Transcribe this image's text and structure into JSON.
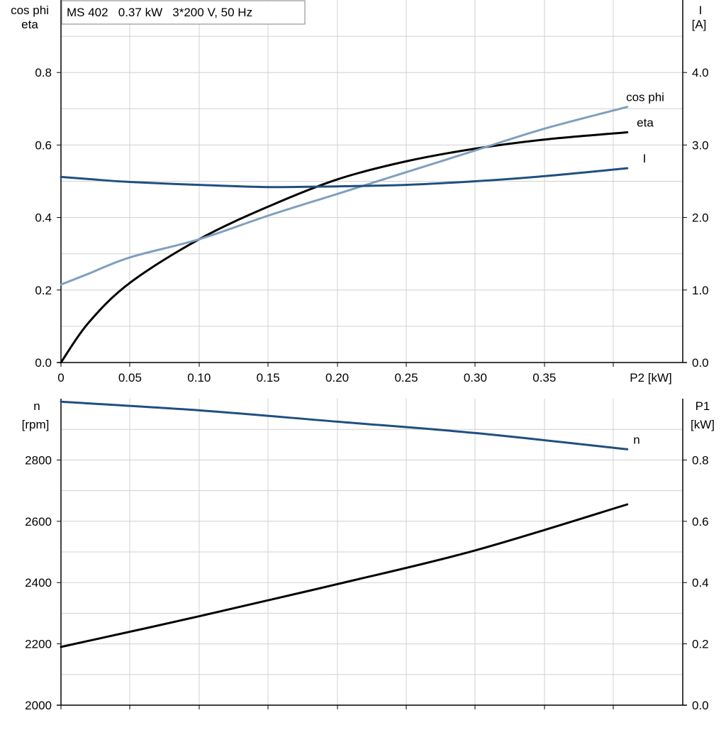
{
  "header": {
    "title": "MS 402   0.37 kW   3*200 V, 50 Hz"
  },
  "colors": {
    "background": "#ffffff",
    "grid": "#d0d0d0",
    "axis": "#000000",
    "eta": "#000000",
    "cos_phi": "#7f9fbf",
    "current": "#1f4f80",
    "speed": "#1f4f80",
    "p1": "#000000"
  },
  "chart_data": [
    {
      "type": "line",
      "x": [
        0,
        0.02,
        0.05,
        0.1,
        0.15,
        0.2,
        0.25,
        0.3,
        0.35,
        0.41
      ],
      "xlabel": "P2 [kW]",
      "xticks": [
        "0",
        "0.05",
        "0.10",
        "0.15",
        "0.20",
        "0.25",
        "0.30",
        "0.35"
      ],
      "xtick_values": [
        0,
        0.05,
        0.1,
        0.15,
        0.2,
        0.25,
        0.3,
        0.35
      ],
      "xlim": [
        0,
        0.4
      ],
      "ylabel_left": [
        "cos phi",
        "eta"
      ],
      "ylabel_right": [
        "I",
        "[A]"
      ],
      "ylim_left": [
        0,
        1.0
      ],
      "ylim_right": [
        0,
        5.0
      ],
      "yticks_left": [
        "0.0",
        "0.2",
        "0.4",
        "0.6",
        "0.8"
      ],
      "ytick_values_left": [
        0,
        0.2,
        0.4,
        0.6,
        0.8
      ],
      "yticks_right": [
        "0.0",
        "1.0",
        "2.0",
        "3.0",
        "4.0"
      ],
      "ytick_values_right": [
        0,
        1,
        2,
        3,
        4
      ],
      "grid": true,
      "series": [
        {
          "name": "eta",
          "axis": "left",
          "color": "#000000",
          "label_color": "#000000",
          "values": [
            0,
            0.11,
            0.22,
            0.34,
            0.43,
            0.505,
            0.555,
            0.59,
            0.615,
            0.635
          ]
        },
        {
          "name": "cos phi",
          "axis": "left",
          "color": "#7f9fbf",
          "label_color": "#7f9fbf",
          "values": [
            0.215,
            0.245,
            0.29,
            0.34,
            0.405,
            0.465,
            0.525,
            0.585,
            0.645,
            0.705
          ]
        },
        {
          "name": "I",
          "axis": "right",
          "color": "#1f4f80",
          "label_color": "#1f4f80",
          "values": [
            2.56,
            2.53,
            2.49,
            2.45,
            2.42,
            2.43,
            2.45,
            2.5,
            2.57,
            2.68
          ]
        }
      ]
    },
    {
      "type": "line",
      "x": [
        0,
        0.1,
        0.2,
        0.3,
        0.41
      ],
      "xlim": [
        0,
        0.4
      ],
      "xtick_values": [
        0,
        0.05,
        0.1,
        0.15,
        0.2,
        0.25,
        0.3,
        0.35
      ],
      "ylabel_left": [
        "n",
        "[rpm]"
      ],
      "ylabel_right": [
        "P1",
        "[kW]"
      ],
      "ylim_left": [
        2000,
        3000
      ],
      "ylim_right": [
        0,
        1.0
      ],
      "yticks_left": [
        "2000",
        "2200",
        "2400",
        "2600",
        "2800"
      ],
      "ytick_values_left": [
        2000,
        2200,
        2400,
        2600,
        2800
      ],
      "yticks_right": [
        "0.0",
        "0.2",
        "0.4",
        "0.6",
        "0.8"
      ],
      "ytick_values_right": [
        0,
        0.2,
        0.4,
        0.6,
        0.8
      ],
      "grid": true,
      "series": [
        {
          "name": "n",
          "axis": "left",
          "color": "#1f4f80",
          "label_color": "#1f4f80",
          "values": [
            2990,
            2962,
            2925,
            2888,
            2835
          ]
        },
        {
          "axis": "right",
          "color": "#000000",
          "values": [
            0.19,
            0.29,
            0.395,
            0.505,
            0.655
          ]
        }
      ]
    }
  ]
}
